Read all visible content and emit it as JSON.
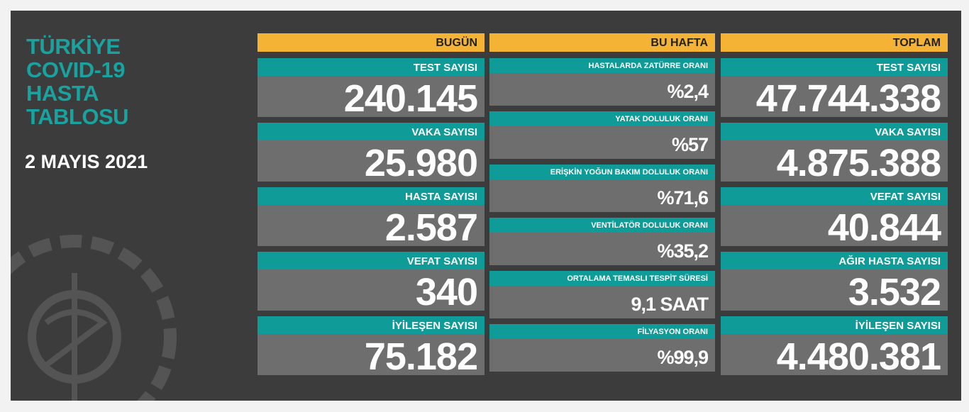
{
  "header": {
    "title_lines": [
      "TÜRKİYE",
      "COVID-19",
      "HASTA",
      "TABLOSU"
    ],
    "date": "2 MAYIS 2021"
  },
  "columns": [
    {
      "header": "BUGÜN",
      "items": [
        {
          "label": "TEST SAYISI",
          "value": "240.145"
        },
        {
          "label": "VAKA SAYISI",
          "value": "25.980"
        },
        {
          "label": "HASTA SAYISI",
          "value": "2.587"
        },
        {
          "label": "VEFAT SAYISI",
          "value": "340"
        },
        {
          "label": "İYİLEŞEN SAYISI",
          "value": "75.182"
        }
      ]
    },
    {
      "header": "BU HAFTA",
      "items": [
        {
          "label": "HASTALARDA ZATÜRRE ORANI",
          "value": "%2,4"
        },
        {
          "label": "YATAK DOLULUK ORANI",
          "value": "%57"
        },
        {
          "label": "ERİŞKİN YOĞUN BAKIM DOLULUK ORANI",
          "value": "%71,6"
        },
        {
          "label": "VENTİLATÖR DOLULUK ORANI",
          "value": "%35,2"
        },
        {
          "label": "ORTALAMA TEMASLI TESPİT SÜRESİ",
          "value": "9,1 SAAT"
        },
        {
          "label": "FİLYASYON ORANI",
          "value": "%99,9"
        }
      ]
    },
    {
      "header": "TOPLAM",
      "items": [
        {
          "label": "TEST SAYISI",
          "value": "47.744.338"
        },
        {
          "label": "VAKA SAYISI",
          "value": "4.875.388"
        },
        {
          "label": "VEFAT SAYISI",
          "value": "40.844"
        },
        {
          "label": "AĞIR HASTA SAYISI",
          "value": "3.532"
        },
        {
          "label": "İYİLEŞEN SAYISI",
          "value": "4.480.381"
        }
      ]
    }
  ]
}
